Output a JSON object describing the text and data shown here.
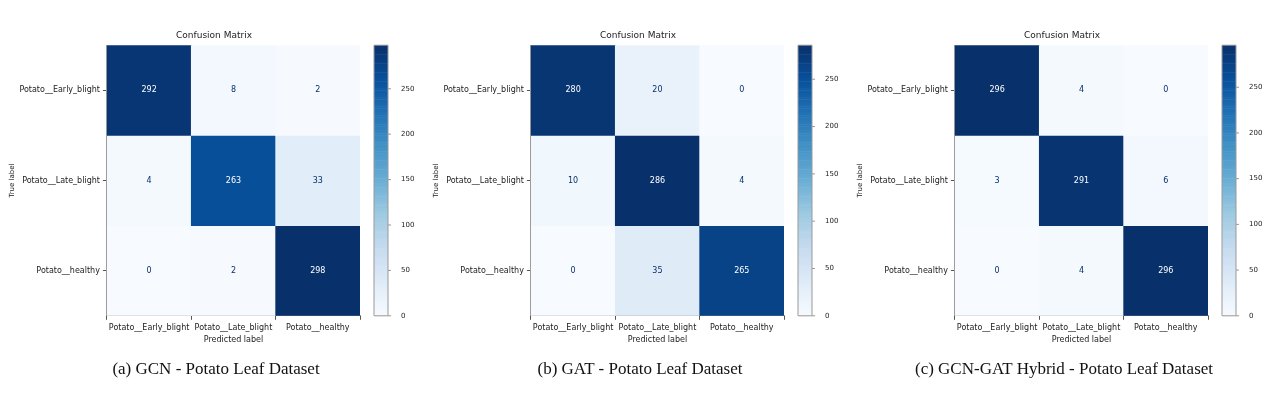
{
  "chart_data": [
    {
      "type": "heatmap",
      "title": "Confusion Matrix",
      "xlabel": "Predicted label",
      "ylabel": "True label",
      "categories": [
        "Potato__Early_blight",
        "Potato__Late_blight",
        "Potato__healthy"
      ],
      "y_categories": [
        "Potato__Early_blight",
        "Potato__Late_blight",
        "Potato__healthy"
      ],
      "cells": [
        [
          292,
          8,
          2
        ],
        [
          4,
          263,
          33
        ],
        [
          0,
          2,
          298
        ]
      ],
      "clim": [
        0,
        298
      ],
      "cticks": [
        0,
        50,
        100,
        150,
        200,
        250
      ],
      "data_labels": true,
      "annotations": [
        "(a) GCN - Potato Leaf Dataset"
      ]
    },
    {
      "type": "heatmap",
      "title": "Confusion Matrix",
      "xlabel": "Predicted label",
      "ylabel": "True label",
      "categories": [
        "Potato__Early_blight",
        "Potato__Late_blight",
        "Potato__healthy"
      ],
      "y_categories": [
        "Potato__Early_blight",
        "Potato__Late_blight",
        "Potato__healthy"
      ],
      "cells": [
        [
          280,
          20,
          0
        ],
        [
          10,
          286,
          4
        ],
        [
          0,
          35,
          265
        ]
      ],
      "clim": [
        0,
        286
      ],
      "cticks": [
        0,
        50,
        100,
        150,
        200,
        250
      ],
      "data_labels": true,
      "annotations": [
        "(b) GAT - Potato Leaf Dataset"
      ]
    },
    {
      "type": "heatmap",
      "title": "Confusion Matrix",
      "xlabel": "Predicted label",
      "ylabel": "True label",
      "categories": [
        "Potato__Early_blight",
        "Potato__Late_blight",
        "Potato__healthy"
      ],
      "y_categories": [
        "Potato__Early_blight",
        "Potato__Late_blight",
        "Potato__healthy"
      ],
      "cells": [
        [
          296,
          4,
          0
        ],
        [
          3,
          291,
          6
        ],
        [
          0,
          4,
          296
        ]
      ],
      "clim": [
        0,
        296
      ],
      "cticks": [
        0,
        50,
        100,
        150,
        200,
        250
      ],
      "data_labels": true,
      "annotations": [
        "(c) GCN-GAT Hybrid - Potato Leaf Dataset"
      ]
    }
  ]
}
